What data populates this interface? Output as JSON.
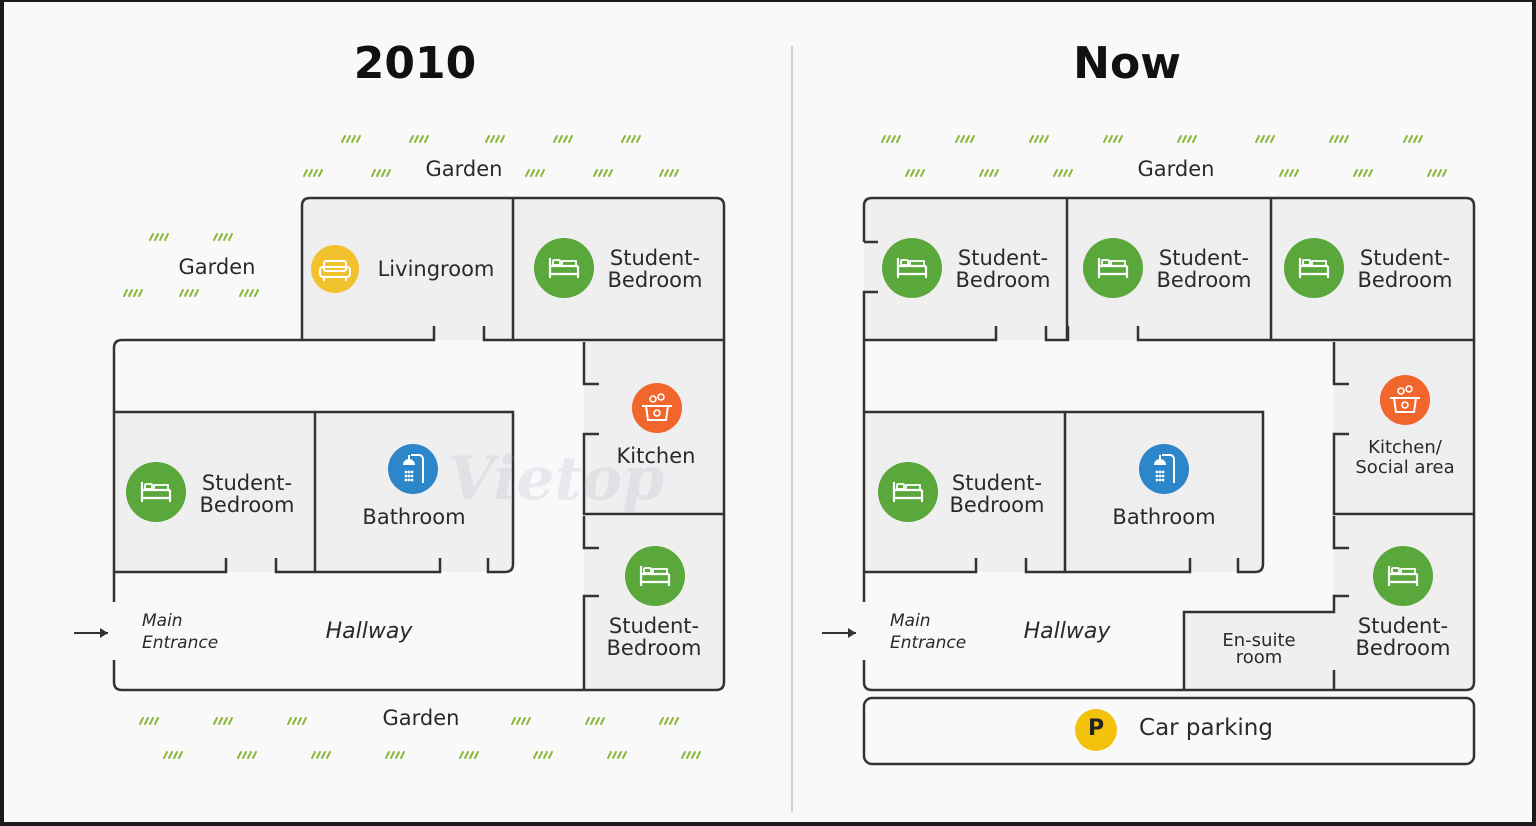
{
  "titles": {
    "left": "2010",
    "right": "Now"
  },
  "garden_label": "Garden",
  "hallway_label": "Hallway",
  "main_entrance": {
    "line1": "Main",
    "line2": "Entrance"
  },
  "rooms_2010": {
    "livingroom": "Livingroom",
    "bedroom_top": {
      "line1": "Student-",
      "line2": "Bedroom"
    },
    "kitchen": "Kitchen",
    "bedroom_left": {
      "line1": "Student-",
      "line2": "Bedroom"
    },
    "bathroom": "Bathroom",
    "bedroom_bottom": {
      "line1": "Student-",
      "line2": "Bedroom"
    }
  },
  "rooms_now": {
    "bedroom_1": {
      "line1": "Student-",
      "line2": "Bedroom"
    },
    "bedroom_2": {
      "line1": "Student-",
      "line2": "Bedroom"
    },
    "bedroom_3": {
      "line1": "Student-",
      "line2": "Bedroom"
    },
    "kitchen": {
      "line1": "Kitchen/",
      "line2": "Social area"
    },
    "bedroom_left": {
      "line1": "Student-",
      "line2": "Bedroom"
    },
    "bathroom": "Bathroom",
    "ensuite": {
      "line1": "En-suite",
      "line2": "room"
    },
    "bedroom_bottom": {
      "line1": "Student-",
      "line2": "Bedroom"
    },
    "parking_icon": "P",
    "parking": "Car parking"
  },
  "watermark": "Vietop",
  "icons": {
    "bed": "bed-icon",
    "sofa": "sofa-icon",
    "kitchen": "kitchen-icon",
    "shower": "shower-icon",
    "parking": "parking-icon",
    "arrow": "arrow-right-icon"
  },
  "colors": {
    "bedroom": "#5aa83c",
    "livingroom": "#f2c12e",
    "kitchen": "#f0662c",
    "bathroom": "#2d86c9",
    "parking": "#f4c20d",
    "grass": "#8ab83a",
    "wall": "#333333",
    "room_fill": "#efefef"
  }
}
